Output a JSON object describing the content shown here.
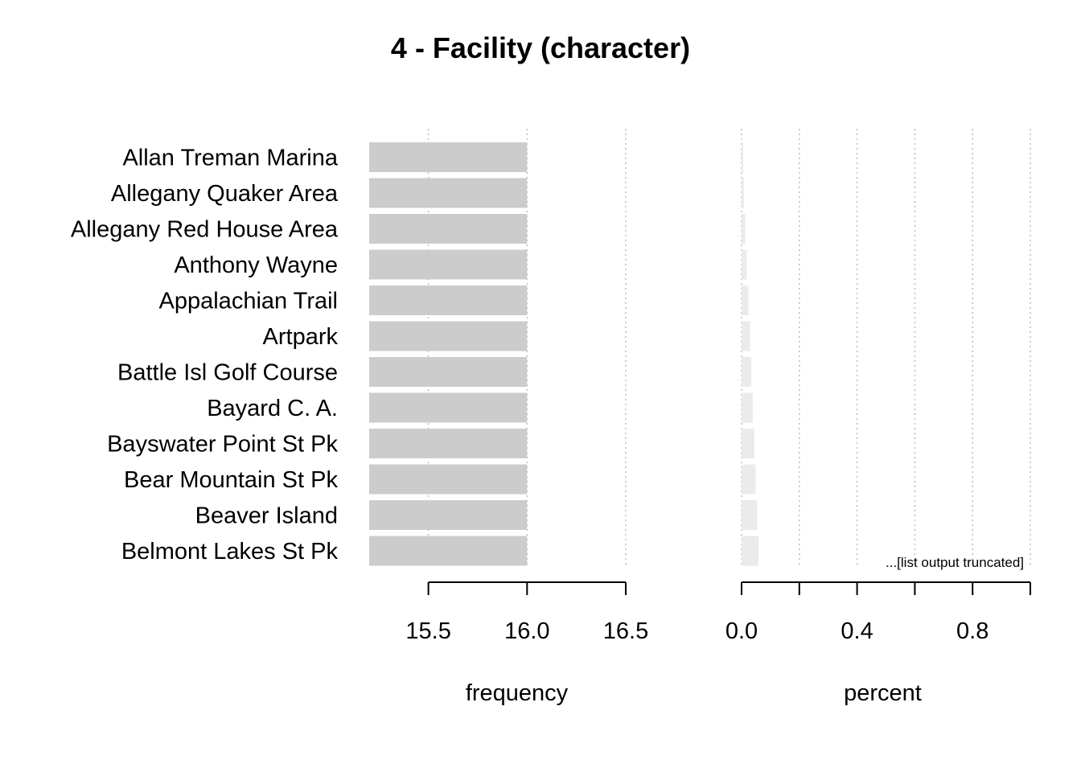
{
  "chart_data": {
    "type": "bar",
    "title": "4 - Facility (character)",
    "categories": [
      "Allan Treman Marina",
      "Allegany Quaker Area",
      "Allegany Red House Area",
      "Anthony Wayne",
      "Appalachian Trail",
      "Artpark",
      "Battle Isl Golf Course",
      "Bayard C. A.",
      "Bayswater Point St Pk",
      "Bear Mountain St Pk",
      "Beaver Island",
      "Belmont Lakes St Pk"
    ],
    "panels": [
      {
        "name": "frequency",
        "xlabel": "frequency",
        "values": [
          16,
          16,
          16,
          16,
          16,
          16,
          16,
          16,
          16,
          16,
          16,
          16
        ],
        "xlim": [
          15.2,
          16.5
        ],
        "ticks": [
          15.5,
          16.0,
          16.5
        ],
        "tick_labels": [
          "15.5",
          "16.0",
          "16.5"
        ],
        "bar_color": "#cccccc",
        "grid": true
      },
      {
        "name": "percent",
        "xlabel": "percent",
        "values": [
          0.0,
          0.008,
          0.013,
          0.018,
          0.024,
          0.029,
          0.034,
          0.039,
          0.044,
          0.049,
          0.054,
          0.059
        ],
        "xlim": [
          0,
          1.0
        ],
        "ticks": [
          0.0,
          0.2,
          0.4,
          0.6,
          0.8,
          1.0
        ],
        "tick_labels": [
          "0.0",
          "",
          "0.4",
          "",
          "0.8",
          ""
        ],
        "bar_color": "#ebebeb",
        "grid": true
      }
    ],
    "annotation": "...[list output truncated]"
  }
}
